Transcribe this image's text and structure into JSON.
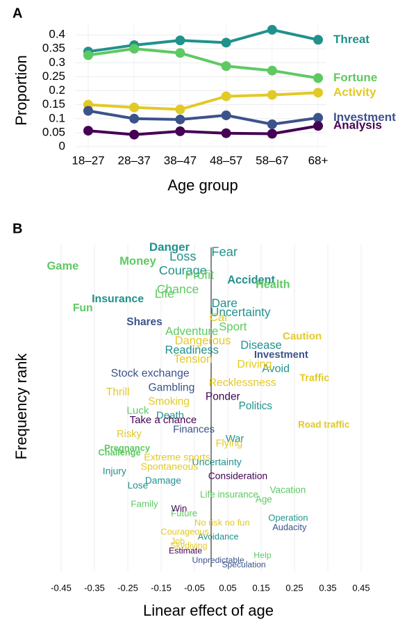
{
  "panels": [
    "A",
    "B"
  ],
  "chart_data": [
    {
      "type": "line",
      "categories": [
        "18–27",
        "28–37",
        "38–47",
        "48–57",
        "58–67",
        "68+"
      ],
      "xlabel": "Age group",
      "ylabel": "Proportion",
      "ylim": [
        0,
        0.43
      ],
      "yticks": [
        0,
        0.05,
        0.1,
        0.15,
        0.2,
        0.25,
        0.3,
        0.35,
        0.4
      ],
      "grid": true,
      "series": [
        {
          "name": "Threat",
          "color": "#21918c",
          "values": [
            0.34,
            0.363,
            0.38,
            0.372,
            0.418,
            0.382
          ]
        },
        {
          "name": "Fortune",
          "color": "#5ec962",
          "values": [
            0.327,
            0.35,
            0.335,
            0.288,
            0.272,
            0.245
          ]
        },
        {
          "name": "Activity",
          "color": "#e3c925",
          "values": [
            0.15,
            0.14,
            0.133,
            0.18,
            0.185,
            0.193
          ]
        },
        {
          "name": "Investment",
          "color": "#3b528b",
          "values": [
            0.128,
            0.1,
            0.097,
            0.112,
            0.08,
            0.103
          ]
        },
        {
          "name": "Analysis",
          "color": "#440154",
          "values": [
            0.057,
            0.043,
            0.055,
            0.048,
            0.046,
            0.074
          ]
        }
      ]
    },
    {
      "type": "words",
      "xlabel": "Linear effect of age",
      "ylabel": "Frequency rank",
      "xlim": [
        -0.5,
        0.5
      ],
      "xticks": [
        -0.45,
        -0.35,
        -0.25,
        -0.15,
        -0.05,
        0.05,
        0.15,
        0.25,
        0.35,
        0.45
      ],
      "ylim": [
        0,
        70
      ],
      "y_reversed": true,
      "grid": true,
      "zero_line": true,
      "series": [
        {
          "color": "#21918c",
          "labels": [
            "Danger",
            "Fear",
            "Loss",
            "Courage",
            "Accident",
            "Insurance",
            "Dare",
            "Uncertainty",
            "Disease",
            "Readiness",
            "Avoid",
            "Politics",
            "Death",
            "War",
            "Uncertainty",
            "Injury",
            "Damage",
            "Lose",
            "Operation",
            "Avoidance"
          ],
          "x": [
            -0.125,
            0.04,
            -0.085,
            -0.085,
            0.12,
            -0.28,
            0.04,
            0.088,
            0.15,
            -0.058,
            0.194,
            0.133,
            -0.123,
            0.071,
            0.017,
            -0.29,
            -0.144,
            -0.22,
            0.231,
            0.021
          ],
          "y": [
            1,
            2,
            3,
            6,
            8,
            12,
            13,
            15,
            22,
            23,
            27,
            35,
            37,
            42,
            47,
            49,
            51,
            52,
            59,
            63
          ],
          "bold": [
            true,
            false,
            false,
            false,
            true,
            true,
            false,
            false,
            false,
            false,
            false,
            false,
            false,
            false,
            false,
            false,
            false,
            false,
            false,
            false
          ]
        },
        {
          "color": "#5ec962",
          "labels": [
            "Money",
            "Game",
            "Profit",
            "Health",
            "Chance",
            "Life",
            "Fun",
            "Sport",
            "Adventure",
            "Luck",
            "Pregnancy",
            "Challenge",
            "Vacation",
            "Life insurance",
            "Age",
            "Family",
            "Future",
            "Help"
          ],
          "x": [
            -0.22,
            -0.445,
            -0.035,
            0.185,
            -0.1,
            -0.14,
            -0.385,
            0.065,
            -0.058,
            -0.22,
            -0.252,
            -0.275,
            0.23,
            0.054,
            0.158,
            -0.2,
            -0.081,
            0.154
          ],
          "y": [
            4,
            5,
            7,
            9,
            10,
            11,
            14,
            18,
            19,
            36,
            44,
            45,
            53,
            54,
            55,
            56,
            58,
            67
          ],
          "bold": [
            true,
            true,
            false,
            true,
            false,
            false,
            true,
            false,
            false,
            false,
            true,
            true,
            false,
            false,
            false,
            false,
            false,
            false
          ]
        },
        {
          "color": "#e3c925",
          "labels": [
            "Car",
            "Caution",
            "Dangerous",
            "Tension",
            "Driving",
            "Traffic",
            "Recklessness",
            "Thrill",
            "Smoking",
            "Road traffic",
            "Risky",
            "Flying",
            "Extreme sports",
            "Spontaneous",
            "No risk no fun",
            "Courageous",
            "Job",
            "Skydiving"
          ],
          "x": [
            0.023,
            0.273,
            -0.025,
            -0.054,
            0.13,
            0.31,
            0.094,
            -0.28,
            -0.127,
            0.338,
            -0.246,
            0.054,
            -0.102,
            -0.125,
            0.033,
            -0.079,
            -0.1,
            -0.067
          ],
          "y": [
            16,
            20,
            21,
            25,
            26,
            29,
            30,
            32,
            34,
            39,
            41,
            43,
            46,
            48,
            60,
            62,
            64,
            65
          ],
          "bold": [
            false,
            true,
            false,
            false,
            false,
            true,
            false,
            false,
            false,
            true,
            false,
            false,
            false,
            false,
            false,
            false,
            false,
            false
          ]
        },
        {
          "color": "#3b528b",
          "labels": [
            "Shares",
            "Investment",
            "Stock exchange",
            "Gambling",
            "Finances",
            "Audacity",
            "Unpredictable",
            "Speculation"
          ],
          "x": [
            -0.2,
            0.21,
            -0.183,
            -0.119,
            -0.052,
            0.235,
            0.021,
            0.098
          ],
          "y": [
            17,
            24,
            28,
            31,
            40,
            61,
            68,
            69
          ],
          "bold": [
            true,
            true,
            false,
            false,
            false,
            false,
            false,
            false
          ]
        },
        {
          "color": "#440154",
          "labels": [
            "Ponder",
            "Take a chance",
            "Consideration",
            "Win",
            "Estimate"
          ],
          "x": [
            0.035,
            -0.144,
            0.08,
            -0.096,
            -0.077
          ],
          "y": [
            33,
            38,
            50,
            57,
            66
          ],
          "bold": [
            false,
            false,
            false,
            false,
            false
          ]
        }
      ]
    }
  ]
}
